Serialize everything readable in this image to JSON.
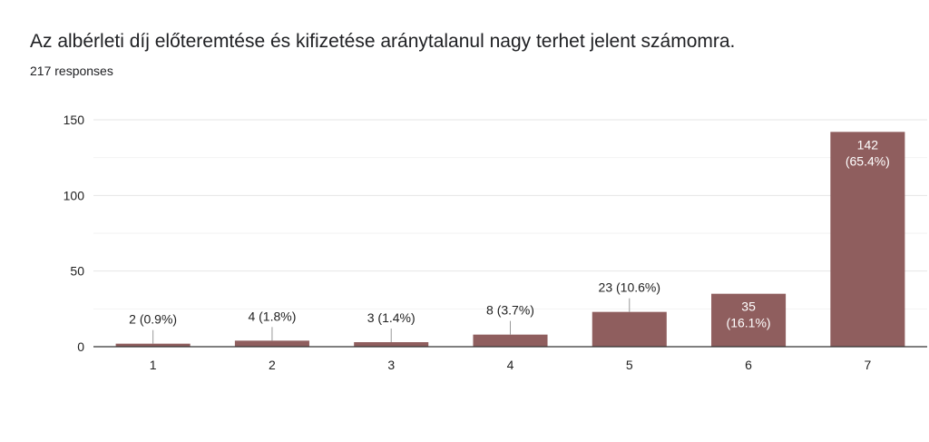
{
  "header": {
    "title": "Az albérleti díj előteremtése és kifizetése aránytalanul nagy terhet jelent számomra.",
    "subtitle": "217 responses"
  },
  "colors": {
    "bar": "#8f5e5e",
    "grid": "#e6e6e6",
    "axis": "#333333",
    "leader": "#999999"
  },
  "chart_data": {
    "type": "bar",
    "categories": [
      "1",
      "2",
      "3",
      "4",
      "5",
      "6",
      "7"
    ],
    "values": [
      2,
      4,
      3,
      8,
      23,
      35,
      142
    ],
    "data_labels": [
      "2 (0.9%)",
      "4 (1.8%)",
      "3 (1.4%)",
      "8 (3.7%)",
      "23 (10.6%)",
      "35\n(16.1%)",
      "142\n(65.4%)"
    ],
    "label_inside": [
      false,
      false,
      false,
      false,
      false,
      true,
      true
    ],
    "title": "Az albérleti díj előteremtése és kifizetése aránytalanul nagy terhet jelent számomra.",
    "ylim": [
      0,
      150
    ],
    "yticks": [
      0,
      50,
      100,
      150
    ],
    "grid": true,
    "legend": "none"
  }
}
